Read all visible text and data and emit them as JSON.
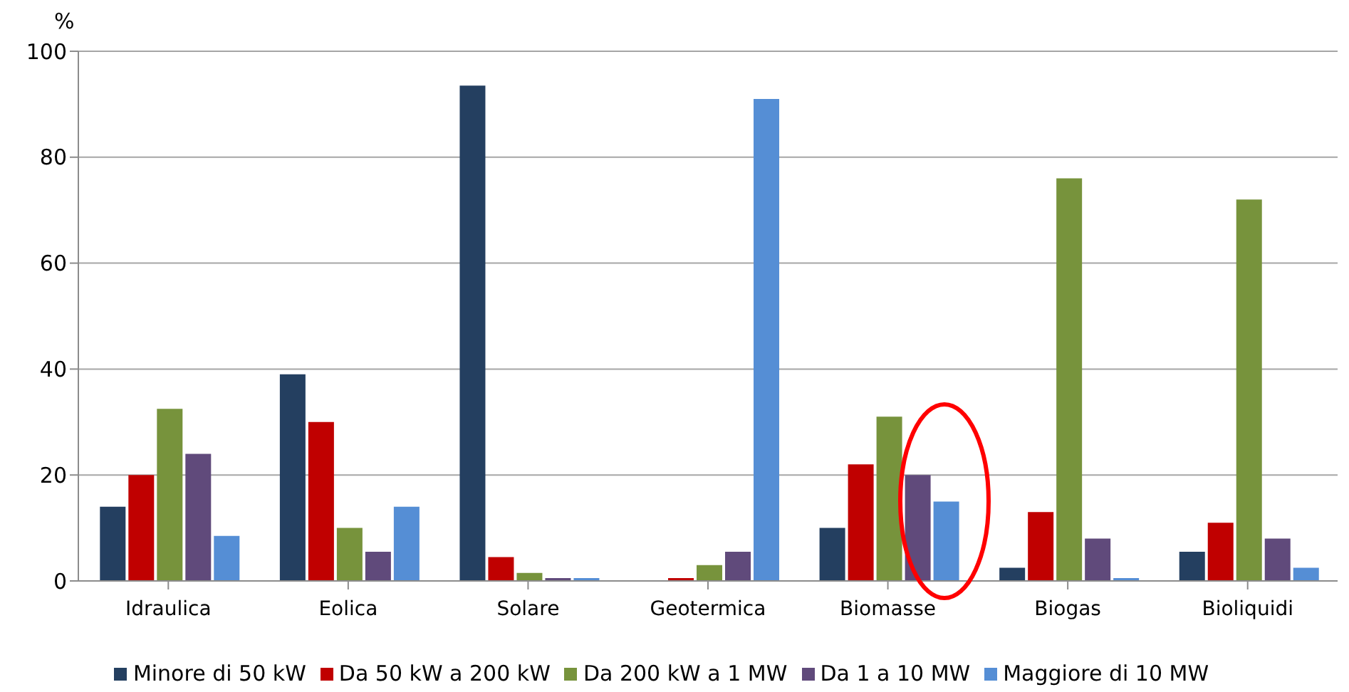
{
  "chart_data": {
    "type": "bar",
    "ylabel": "%",
    "categories": [
      "Idraulica",
      "Eolica",
      "Solare",
      "Geotermica",
      "Biomasse",
      "Biogas",
      "Bioliquidi"
    ],
    "series": [
      {
        "name": "Minore di 50 kW",
        "color": "#243f60",
        "values": [
          14,
          39,
          93.5,
          0,
          10,
          2.5,
          5.5
        ]
      },
      {
        "name": "Da 50 kW a 200 kW",
        "color": "#c00000",
        "values": [
          20,
          30,
          4.5,
          0.3,
          22,
          13,
          11
        ]
      },
      {
        "name": "Da 200 kW a 1 MW",
        "color": "#77933c",
        "values": [
          32.5,
          10,
          1.5,
          3,
          31,
          76,
          72
        ]
      },
      {
        "name": "Da 1 a 10 MW",
        "color": "#604a7b",
        "values": [
          24,
          5.5,
          0.5,
          5.5,
          20,
          8,
          8
        ]
      },
      {
        "name": "Maggiore di 10 MW",
        "color": "#558ed5",
        "values": [
          8.5,
          14,
          0.2,
          91,
          15,
          0.2,
          2.5
        ]
      }
    ],
    "ylim": [
      0,
      100
    ],
    "yticks": [
      0,
      20,
      40,
      60,
      80,
      100
    ],
    "grid": "y",
    "legend": "bottom"
  }
}
